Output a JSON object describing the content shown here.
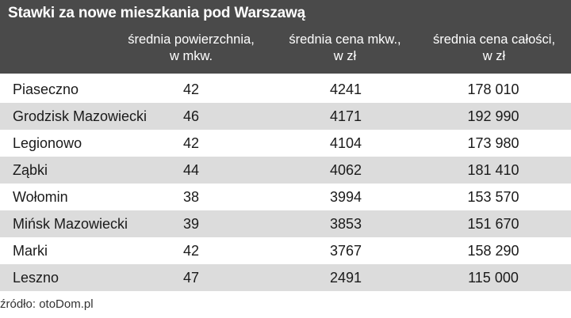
{
  "chart_data": {
    "type": "table",
    "title": "Stawki za nowe mieszkania pod Warszawą",
    "columns": [
      {
        "line1": "średnia powierzchnia,",
        "line2": "w mkw."
      },
      {
        "line1": "średnia cena mkw.,",
        "line2": "w zł"
      },
      {
        "line1": "średnia cena całości,",
        "line2": "w zł"
      }
    ],
    "rows": [
      {
        "name": "Piaseczno",
        "area": "42",
        "price_per_m2": "4241",
        "total": "178 010"
      },
      {
        "name": "Grodzisk Mazowiecki",
        "area": "46",
        "price_per_m2": "4171",
        "total": "192 990"
      },
      {
        "name": "Legionowo",
        "area": "42",
        "price_per_m2": "4104",
        "total": "173 980"
      },
      {
        "name": "Ząbki",
        "area": "44",
        "price_per_m2": "4062",
        "total": "181 410"
      },
      {
        "name": "Wołomin",
        "area": "38",
        "price_per_m2": "3994",
        "total": "153 570"
      },
      {
        "name": "Mińsk Mazowiecki",
        "area": "39",
        "price_per_m2": "3853",
        "total": "151 670"
      },
      {
        "name": "Marki",
        "area": "42",
        "price_per_m2": "3767",
        "total": "158 290"
      },
      {
        "name": "Leszno",
        "area": "47",
        "price_per_m2": "2491",
        "total": "115 000"
      }
    ],
    "source": "źródło: otoDom.pl"
  },
  "colors": {
    "header_bg": "#4a4a4a",
    "row_shade": "#dcdcdc"
  }
}
